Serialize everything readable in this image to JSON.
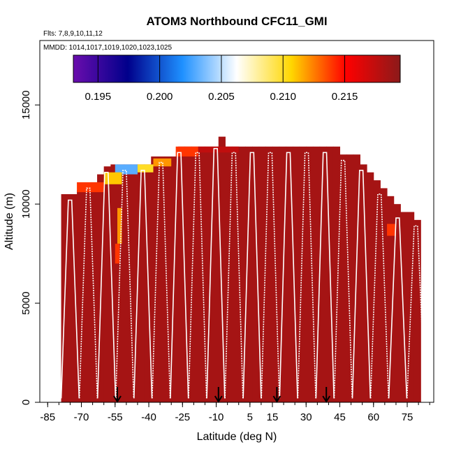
{
  "chart_data": {
    "type": "heatmap",
    "title": "ATOM3 Northbound CFC11_GMI",
    "subtitle_flights": "Flts: 7,8,9,10,11,12",
    "subtitle_dates": "MMDD: 1014,1017,1019,1020,1023,1025",
    "xlabel": "Latitude (deg N)",
    "ylabel": "Altitude (m)",
    "xlim": [
      -85,
      85
    ],
    "ylim": [
      0,
      18000
    ],
    "x_ticks": [
      -85,
      -70,
      -55,
      -40,
      -25,
      -10,
      5,
      15,
      30,
      45,
      60,
      75
    ],
    "y_ticks": [
      0,
      5000,
      10000,
      15000
    ],
    "colorbar": {
      "min": 0.193,
      "max": 0.2195,
      "ticks": [
        0.195,
        0.2,
        0.205,
        0.21,
        0.215
      ],
      "tick_labels": [
        "0.195",
        "0.200",
        "0.205",
        "0.210",
        "0.215"
      ],
      "colors": [
        "#6a0dad",
        "#00008b",
        "#1e90ff",
        "#ffffff",
        "#ffd700",
        "#ff0000",
        "#8b1a1a"
      ]
    },
    "background_value": 0.2185,
    "ceiling_profile": {
      "lat": [
        -79,
        -75,
        -72,
        -69,
        -66,
        -63,
        -60,
        -57,
        -54,
        -51,
        -48,
        -45,
        -42,
        -39,
        -36,
        -33,
        -30,
        -27,
        -24,
        -21,
        -18,
        -15,
        -12,
        -9,
        -6,
        -3,
        0,
        3,
        6,
        9,
        12,
        15,
        18,
        21,
        24,
        27,
        30,
        33,
        36,
        39,
        42,
        45,
        48,
        51,
        54,
        57,
        60,
        63,
        66,
        69,
        72,
        75,
        78
      ],
      "alt_top": [
        10500,
        10500,
        10700,
        10700,
        11100,
        11500,
        11900,
        12000,
        12000,
        12000,
        12000,
        12000,
        12000,
        12400,
        12400,
        12400,
        12400,
        12900,
        12900,
        12900,
        12900,
        12900,
        12900,
        13400,
        12900,
        12900,
        12900,
        12900,
        12900,
        12900,
        12900,
        12900,
        12900,
        12900,
        12900,
        12900,
        12900,
        12900,
        12900,
        12900,
        12900,
        12500,
        12500,
        12500,
        12000,
        11600,
        11200,
        10800,
        10400,
        10000,
        9600,
        9600,
        9200
      ]
    },
    "anomalies": [
      {
        "lat": [
          -55,
          -45
        ],
        "alt": [
          11500,
          12000
        ],
        "value": 0.203
      },
      {
        "lat": [
          -45,
          -38
        ],
        "alt": [
          11600,
          12000
        ],
        "value": 0.21
      },
      {
        "lat": [
          -38,
          -30
        ],
        "alt": [
          11900,
          12300
        ],
        "value": 0.212
      },
      {
        "lat": [
          -28,
          -18
        ],
        "alt": [
          12400,
          12900
        ],
        "value": 0.214
      },
      {
        "lat": [
          -72,
          -60
        ],
        "alt": [
          10600,
          11100
        ],
        "value": 0.214
      },
      {
        "lat": [
          -60,
          -52
        ],
        "alt": [
          11000,
          11600
        ],
        "value": 0.211
      },
      {
        "lat": [
          -54,
          -52
        ],
        "alt": [
          8000,
          9800
        ],
        "value": 0.212
      },
      {
        "lat": [
          -55,
          -53
        ],
        "alt": [
          7000,
          8000
        ],
        "value": 0.214
      },
      {
        "lat": [
          66,
          70
        ],
        "alt": [
          8400,
          9000
        ],
        "value": 0.214
      },
      {
        "lat": [
          -18,
          0
        ],
        "alt": [
          12600,
          12900
        ],
        "value": 0.2175
      }
    ],
    "markers_lat": [
      -54,
      -9,
      17,
      39
    ]
  }
}
